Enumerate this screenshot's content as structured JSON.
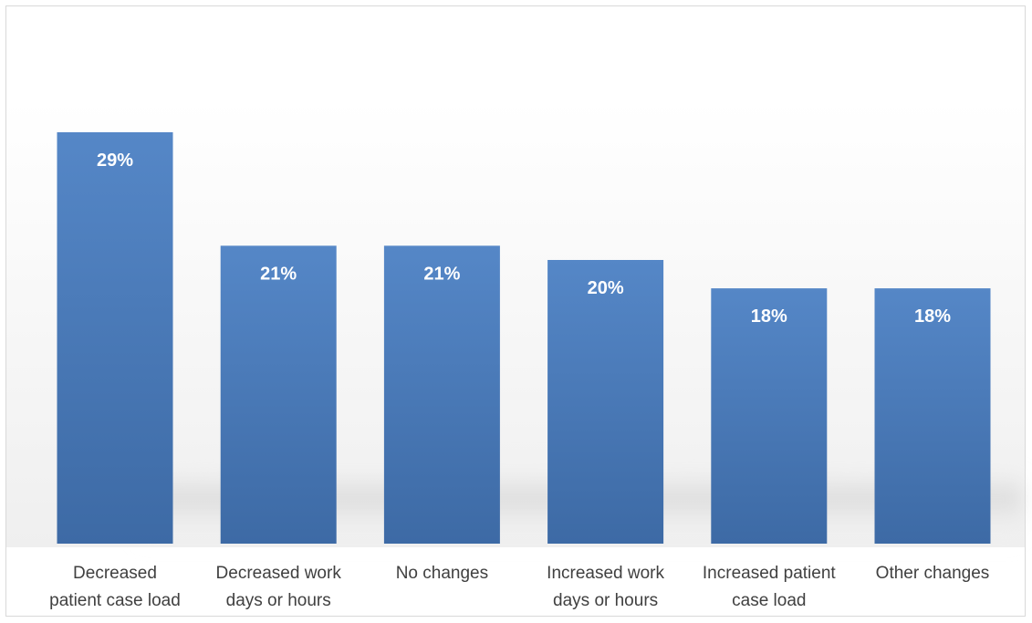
{
  "chart_data": {
    "type": "bar",
    "title": "",
    "xlabel": "",
    "ylabel": "",
    "ylim": [
      0,
      35
    ],
    "grid": false,
    "legend": "none",
    "categories": [
      [
        "Decreased",
        "patient case load"
      ],
      [
        "Decreased work",
        "days or hours"
      ],
      [
        "No changes"
      ],
      [
        "Increased work",
        "days or hours"
      ],
      [
        "Increased patient",
        "case load"
      ],
      [
        "Other changes"
      ]
    ],
    "values": [
      29,
      21,
      21,
      20,
      18,
      18
    ],
    "data_labels": [
      "29%",
      "21%",
      "21%",
      "20%",
      "18%",
      "18%"
    ],
    "bar_color": "#4a7ebb",
    "bar_color_top": "#5587c7",
    "bar_color_bottom": "#3d6aa5",
    "label_color": "#ffffff",
    "category_label_color": "#404040"
  }
}
